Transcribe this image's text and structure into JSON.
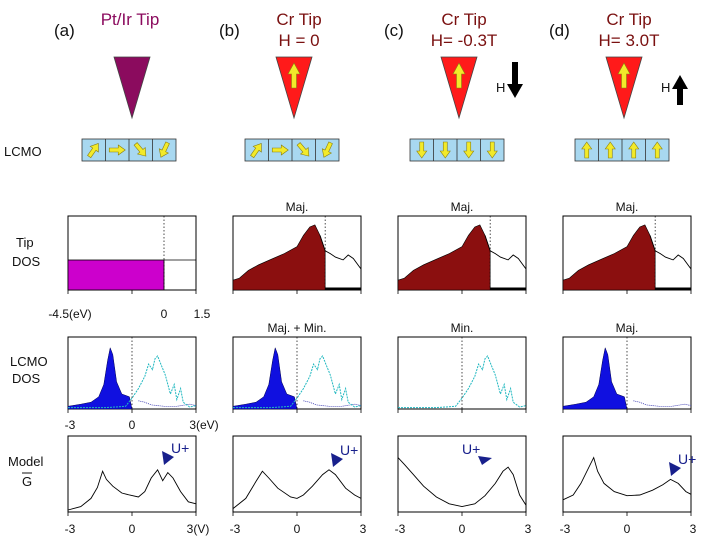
{
  "panels": [
    {
      "letter": "(a)",
      "tip_title": [
        "Pt/Ir Tip"
      ],
      "tip_color": "#8b0b5e",
      "tip_arrow": false,
      "field_label": "",
      "field_dir": "none",
      "lcmo_spins": [
        "up-right",
        "right",
        "down-right",
        "down-left"
      ],
      "tip_dos_label": "",
      "lcmo_dos_label": "",
      "tip_dos_ticks": [
        "-4.5(eV)",
        "0",
        "1.5"
      ],
      "dos_ticks": [
        "-3",
        "0",
        "3(eV)"
      ],
      "g_ticks": [
        "-3",
        "0",
        "3(V)"
      ],
      "g_marker": "U+"
    },
    {
      "letter": "(b)",
      "tip_title": [
        "Cr Tip",
        "H = 0"
      ],
      "tip_color": "#ff1a1a",
      "tip_arrow": true,
      "field_label": "",
      "field_dir": "none",
      "lcmo_spins": [
        "up-right",
        "right",
        "down-right",
        "down-left"
      ],
      "tip_dos_label": "Maj.",
      "lcmo_dos_label": "Maj. + Min.",
      "tip_dos_ticks": [],
      "dos_ticks": [],
      "g_ticks": [
        "-3",
        "0",
        "3"
      ],
      "g_marker": "U+"
    },
    {
      "letter": "(c)",
      "tip_title": [
        "Cr Tip",
        "H= -0.3T"
      ],
      "tip_color": "#ff1a1a",
      "tip_arrow": true,
      "field_label": "H",
      "field_dir": "down",
      "lcmo_spins": [
        "down",
        "down",
        "down",
        "down"
      ],
      "tip_dos_label": "Maj.",
      "lcmo_dos_label": "Min.",
      "tip_dos_ticks": [],
      "dos_ticks": [],
      "g_ticks": [
        "-3",
        "0",
        "3"
      ],
      "g_marker": "U+"
    },
    {
      "letter": "(d)",
      "tip_title": [
        "Cr Tip",
        "H= 3.0T"
      ],
      "tip_color": "#ff1a1a",
      "tip_arrow": true,
      "field_label": "H",
      "field_dir": "up",
      "lcmo_spins": [
        "up",
        "up",
        "up",
        "up"
      ],
      "tip_dos_label": "Maj.",
      "lcmo_dos_label": "Maj.",
      "tip_dos_ticks": [],
      "dos_ticks": [],
      "g_ticks": [
        "-3",
        "0",
        "3"
      ],
      "g_marker": "U+"
    }
  ],
  "row_labels": {
    "lcmo": "LCMO",
    "tip_dos": [
      "Tip",
      "DOS"
    ],
    "lcmo_dos": [
      "LCMO",
      "DOS"
    ],
    "model": [
      "Model",
      "G"
    ]
  },
  "colors": {
    "tip_dos_fill": "#8b0f0f",
    "ptir_dos_fill": "#cc00cc",
    "lcmo_maj_fill": "#1010e0",
    "lcmo_min_line": "#20b8c0",
    "lcmo_box": "#a8d8f0",
    "spin_arrow": "#f2ea2a",
    "marker": "#18208c"
  }
}
